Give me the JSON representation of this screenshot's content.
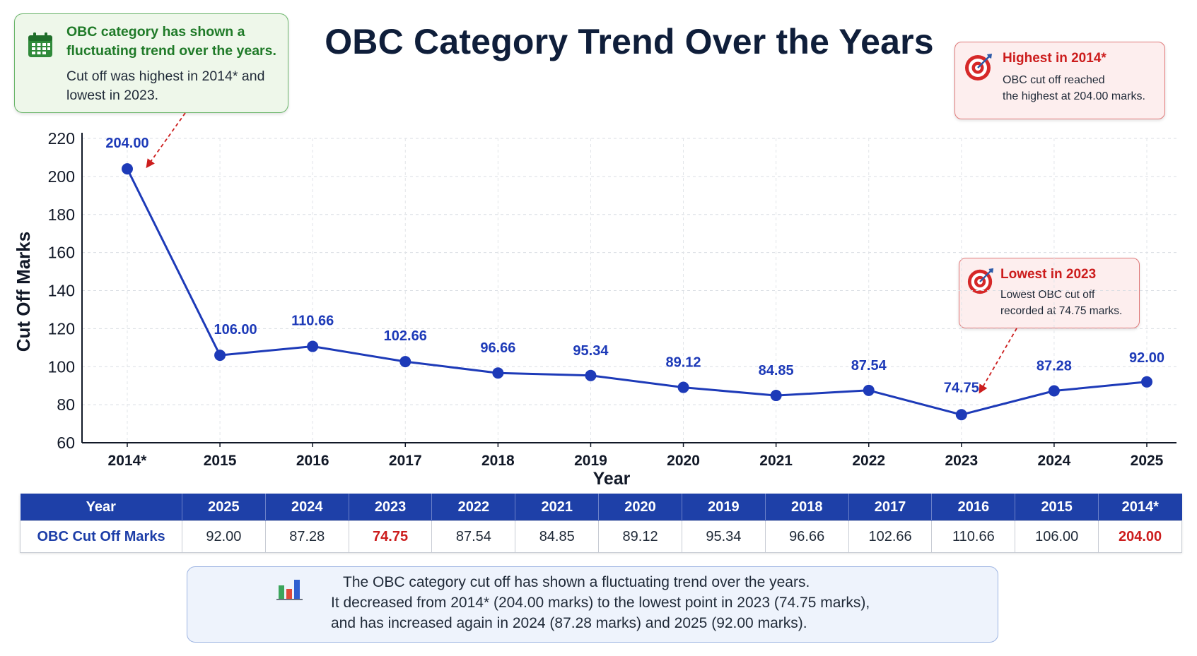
{
  "title": "OBC Category Trend Over the Years",
  "callouts": {
    "trend": {
      "icon": "calendar-icon",
      "heading_line1": "OBC category has shown a",
      "heading_line2": "fluctuating trend over the years.",
      "body_line1": "Cut off was highest in 2014* and",
      "body_line2": "lowest in 2023."
    },
    "highest": {
      "icon": "target-icon",
      "heading": "Highest in 2014*",
      "body_line1": "OBC cut off reached",
      "body_line2": "the highest at 204.00 marks."
    },
    "lowest": {
      "icon": "target-icon",
      "heading": "Lowest in 2023",
      "body_line1": "Lowest OBC cut off",
      "body_line2": "recorded at 74.75 marks."
    }
  },
  "chart_data": {
    "type": "line",
    "title": "OBC Category Trend Over the Years",
    "xlabel": "Year",
    "ylabel": "Cut Off Marks",
    "categories": [
      "2014*",
      "2015",
      "2016",
      "2017",
      "2018",
      "2019",
      "2020",
      "2021",
      "2022",
      "2023",
      "2024",
      "2025"
    ],
    "values": [
      204.0,
      106.0,
      110.66,
      102.66,
      96.66,
      95.34,
      89.12,
      84.85,
      87.54,
      74.75,
      87.28,
      92.0
    ],
    "value_labels": [
      "204.00",
      "106.00",
      "110.66",
      "102.66",
      "96.66",
      "95.34",
      "89.12",
      "84.85",
      "87.54",
      "74.75",
      "87.28",
      "92.00"
    ],
    "ylim": [
      60,
      220
    ],
    "yticks": [
      60,
      80,
      100,
      120,
      140,
      160,
      180,
      200,
      220
    ],
    "grid": true,
    "line_color": "#1d3ab8",
    "label_color": "#1d3ab8",
    "highlight_color": "#cc1d1d"
  },
  "table": {
    "header_label": "Year",
    "row_label": "OBC Cut Off Marks",
    "years": [
      "2025",
      "2024",
      "2023",
      "2022",
      "2021",
      "2020",
      "2019",
      "2018",
      "2017",
      "2016",
      "2015",
      "2014*"
    ],
    "values": [
      "92.00",
      "87.28",
      "74.75",
      "87.54",
      "84.85",
      "89.12",
      "95.34",
      "96.66",
      "102.66",
      "110.66",
      "106.00",
      "204.00"
    ],
    "highlighted": [
      "2023",
      "2014*"
    ]
  },
  "summary": {
    "icon": "bar-chart-icon",
    "line1": "The OBC category cut off has shown a fluctuating trend over the years.",
    "line2": "It decreased from 2014* (204.00 marks) to the lowest point in 2023 (74.75 marks),",
    "line3": "and has increased again in 2024 (87.28 marks) and 2025 (92.00 marks)."
  }
}
